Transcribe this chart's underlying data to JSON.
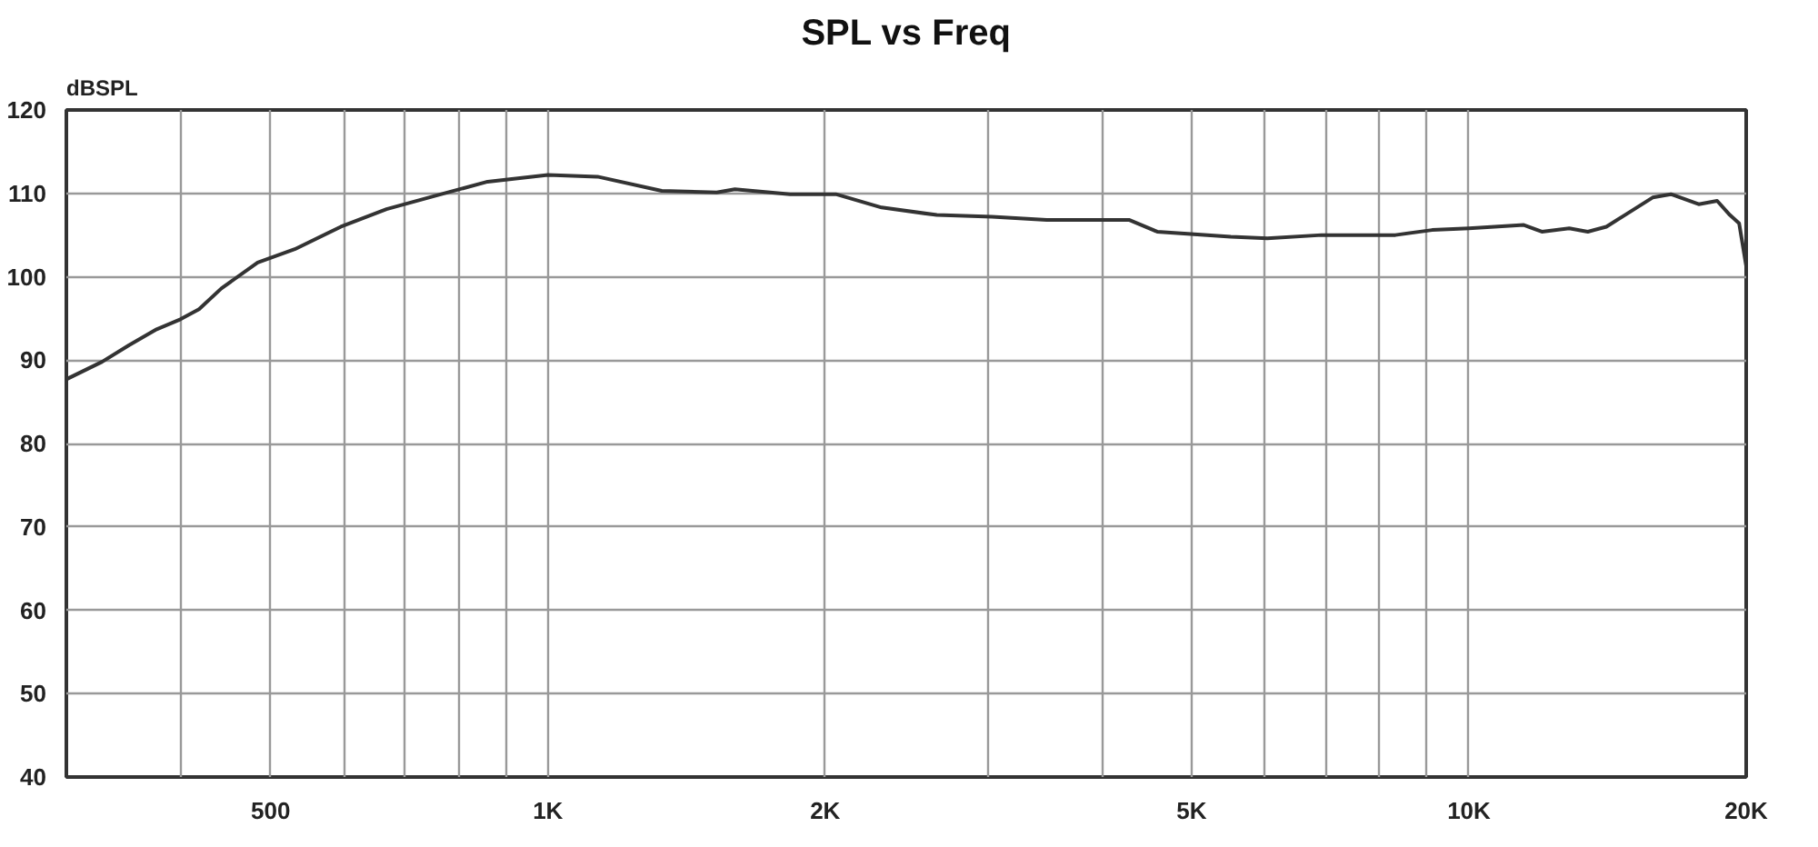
{
  "chart_data": {
    "type": "line",
    "title": "SPL vs Freq",
    "ylabel": "dBSPL",
    "x": [
      300,
      328,
      351,
      376,
      399,
      418,
      442,
      484,
      531,
      596,
      668,
      766,
      860,
      1000,
      1132,
      1329,
      1525,
      1596,
      1832,
      2054,
      2303,
      2644,
      3035,
      3480,
      4280,
      4587,
      5513,
      6040,
      6920,
      8320,
      9120,
      10000,
      11470,
      12000,
      12850,
      13460,
      14100,
      14770,
      15830,
      16570,
      17760,
      18600,
      19200,
      19650,
      20000
    ],
    "series": [
      {
        "color": "#333333",
        "values": [
          87.7,
          89.8,
          91.8,
          93.7,
          94.9,
          96.1,
          98.6,
          101.7,
          103.3,
          106,
          108.1,
          109.9,
          111.4,
          112.2,
          112,
          110.3,
          110.1,
          110.5,
          109.9,
          109.9,
          108.3,
          107.4,
          107.2,
          106.8,
          106.8,
          105.4,
          104.8,
          104.6,
          105,
          105,
          105.6,
          105.8,
          106.2,
          105.4,
          105.8,
          105.4,
          106,
          107.4,
          109.5,
          109.9,
          108.7,
          109.1,
          107.4,
          106.4,
          101.3
        ]
      }
    ],
    "log": "x",
    "xlim": [
      300,
      20000
    ],
    "ylim": [
      40,
      120
    ],
    "xticks": [
      {
        "value": 400,
        "label": null
      },
      {
        "value": 500,
        "label": "500"
      },
      {
        "value": 600,
        "label": null
      },
      {
        "value": 700,
        "label": null
      },
      {
        "value": 800,
        "label": null
      },
      {
        "value": 900,
        "label": null
      },
      {
        "value": 1000,
        "label": "1K"
      },
      {
        "value": 2000,
        "label": "2K"
      },
      {
        "value": 3000,
        "label": null
      },
      {
        "value": 4000,
        "label": null
      },
      {
        "value": 5000,
        "label": "5K"
      },
      {
        "value": 6000,
        "label": null
      },
      {
        "value": 7000,
        "label": null
      },
      {
        "value": 8000,
        "label": null
      },
      {
        "value": 9000,
        "label": null
      },
      {
        "value": 10000,
        "label": "10K"
      },
      {
        "value": 20000,
        "label": "20K"
      }
    ],
    "yticks": [
      40,
      50,
      60,
      70,
      80,
      90,
      100,
      110,
      120
    ],
    "grid": true,
    "marker": "none",
    "line_style": "solid"
  }
}
